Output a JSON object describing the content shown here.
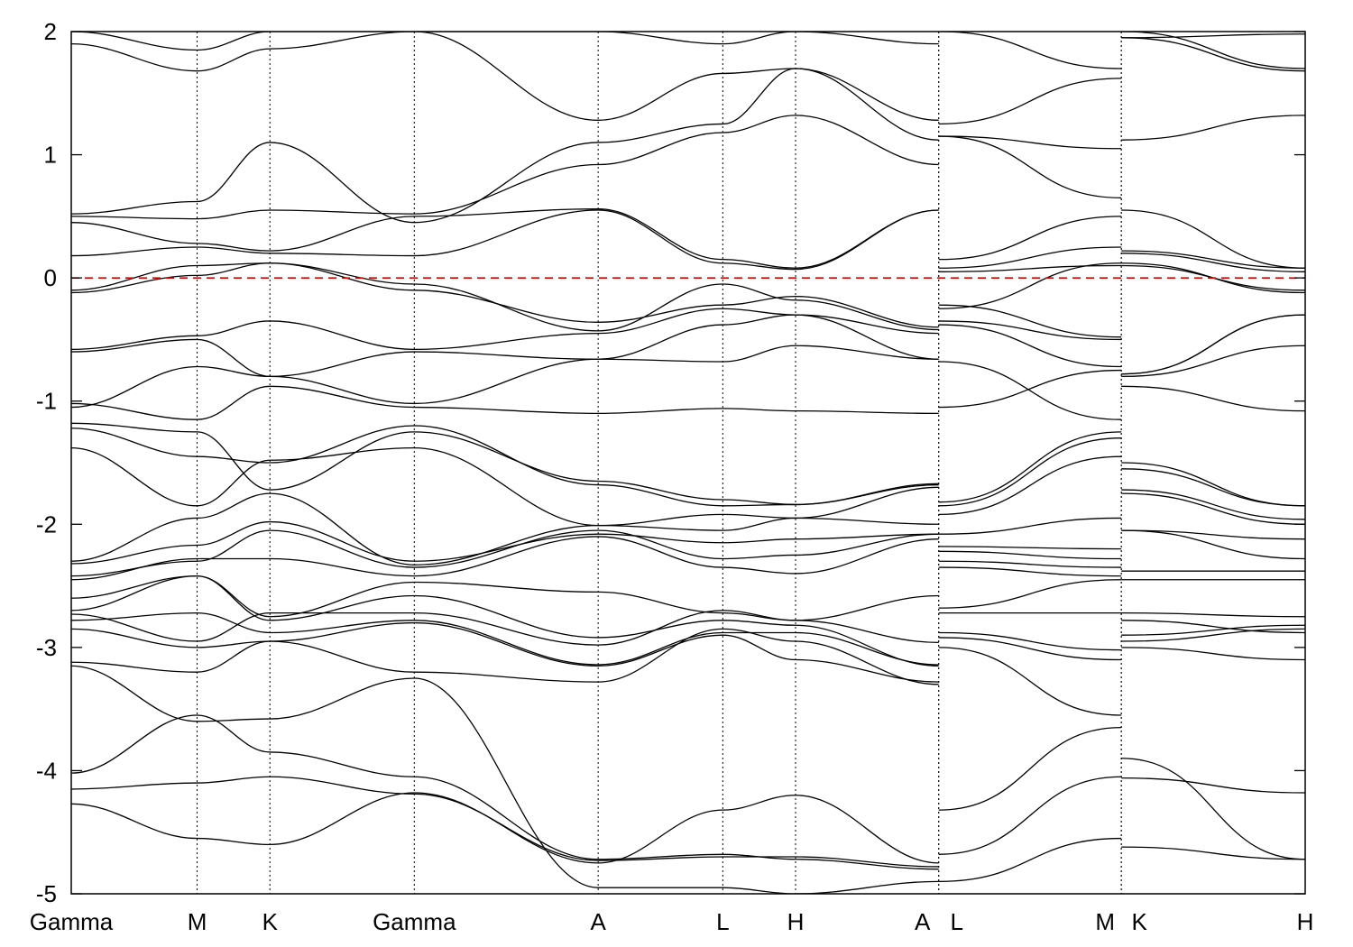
{
  "chart_data": {
    "type": "line",
    "title": "",
    "xlabel": "",
    "ylabel": "",
    "ylim": [
      -5,
      2
    ],
    "yticks": [
      -5,
      -4,
      -3,
      -2,
      -1,
      0,
      1,
      2
    ],
    "ytick_labels": [
      "-5",
      "-4",
      "-3",
      "-2",
      "-1",
      "0",
      "1",
      "2"
    ],
    "xlim": [
      0,
      1
    ],
    "kpoints": [
      {
        "label": "Gamma",
        "x": 0.0
      },
      {
        "label": "M",
        "x": 0.102
      },
      {
        "label": "K",
        "x": 0.161
      },
      {
        "label": "Gamma",
        "x": 0.278
      },
      {
        "label": "A",
        "x": 0.427
      },
      {
        "label": "L",
        "x": 0.528
      },
      {
        "label": "H",
        "x": 0.587
      },
      {
        "label": "A",
        "x": 0.703
      },
      {
        "label": "L",
        "x": 0.703
      },
      {
        "label": "M",
        "x": 0.851
      },
      {
        "label": "K",
        "x": 0.851
      },
      {
        "label": "H",
        "x": 1.0
      }
    ],
    "segment_breaks": [
      0.703,
      0.851
    ],
    "fermi_level": 0,
    "fermi_color": "#e00000",
    "band_color": "#000000",
    "grid": false,
    "legend": "none",
    "segments": [
      {
        "path": "Gamma-M-K-Gamma-A-L-H-A",
        "nodes": [
          0.0,
          0.102,
          0.161,
          0.278,
          0.427,
          0.528,
          0.587,
          0.703
        ],
        "bands": [
          [
            -4.27,
            -4.55,
            -4.6,
            -4.18,
            -4.75,
            -4.32,
            -4.2,
            -4.75
          ],
          [
            -4.15,
            -4.1,
            -4.05,
            -4.19,
            -4.73,
            -4.7,
            -4.7,
            -4.78
          ],
          [
            -4.02,
            -3.55,
            -3.85,
            -4.05,
            -4.72,
            -4.68,
            -4.72,
            -4.8
          ],
          [
            -3.15,
            -3.6,
            -3.58,
            -3.25,
            -4.95,
            -4.95,
            -5.0,
            -4.9
          ],
          [
            -3.12,
            -3.2,
            -2.95,
            -3.2,
            -3.28,
            -2.85,
            -2.95,
            -3.3
          ],
          [
            -2.85,
            -3.0,
            -2.95,
            -2.8,
            -3.15,
            -2.9,
            -3.1,
            -3.28
          ],
          [
            -2.78,
            -2.72,
            -2.88,
            -2.78,
            -3.14,
            -2.88,
            -2.88,
            -3.14
          ],
          [
            -2.73,
            -2.95,
            -2.72,
            -2.72,
            -2.98,
            -2.7,
            -2.78,
            -2.58
          ],
          [
            -2.7,
            -2.42,
            -2.78,
            -2.58,
            -2.92,
            -2.78,
            -2.82,
            -3.15
          ],
          [
            -2.6,
            -2.42,
            -2.75,
            -2.47,
            -2.55,
            -2.72,
            -2.78,
            -2.96
          ],
          [
            -2.45,
            -2.28,
            -2.28,
            -2.42,
            -2.1,
            -2.35,
            -2.4,
            -2.12
          ],
          [
            -2.42,
            -2.3,
            -2.05,
            -2.35,
            -2.05,
            -2.28,
            -2.25,
            -2.08
          ],
          [
            -2.32,
            -2.17,
            -1.98,
            -2.3,
            -2.08,
            -2.15,
            -2.12,
            -2.08
          ],
          [
            -2.3,
            -1.95,
            -1.75,
            -2.33,
            -2.01,
            -2.05,
            -1.95,
            -2.0
          ],
          [
            -1.38,
            -1.85,
            -1.48,
            -1.38,
            -2.01,
            -1.92,
            -1.95,
            -1.7
          ],
          [
            -1.22,
            -1.45,
            -1.5,
            -1.2,
            -1.68,
            -1.85,
            -1.84,
            -1.67
          ],
          [
            -1.18,
            -1.25,
            -1.72,
            -1.25,
            -1.65,
            -1.8,
            -1.84,
            -1.68
          ],
          [
            -1.02,
            -1.15,
            -0.88,
            -1.05,
            -1.1,
            -1.06,
            -1.08,
            -1.1
          ],
          [
            -1.05,
            -0.72,
            -0.8,
            -1.02,
            -0.66,
            -0.68,
            -0.55,
            -0.66
          ],
          [
            -0.6,
            -0.5,
            -0.8,
            -0.6,
            -0.66,
            -0.38,
            -0.3,
            -0.66
          ],
          [
            -0.58,
            -0.47,
            -0.35,
            -0.58,
            -0.45,
            -0.25,
            -0.3,
            -0.45
          ],
          [
            -0.12,
            0.02,
            0.12,
            -0.1,
            -0.36,
            -0.22,
            -0.15,
            -0.4
          ],
          [
            -0.1,
            0.1,
            0.12,
            -0.05,
            -0.43,
            -0.05,
            -0.18,
            -0.42
          ],
          [
            0.18,
            0.25,
            0.2,
            0.18,
            0.55,
            0.12,
            0.07,
            0.55
          ],
          [
            0.45,
            0.28,
            0.22,
            0.5,
            0.56,
            0.15,
            0.08,
            0.55
          ],
          [
            0.5,
            0.48,
            0.55,
            0.52,
            0.92,
            1.18,
            1.32,
            0.92
          ],
          [
            0.52,
            0.62,
            1.1,
            0.45,
            1.1,
            1.25,
            1.7,
            1.12
          ],
          [
            1.9,
            1.68,
            1.86,
            2.0,
            1.28,
            1.66,
            1.7,
            1.28
          ],
          [
            2.0,
            1.85,
            2.0,
            2.0,
            2.0,
            1.9,
            2.0,
            1.9
          ]
        ]
      },
      {
        "path": "L-M",
        "nodes": [
          0.703,
          0.851
        ],
        "bands": [
          [
            -4.9,
            -4.55
          ],
          [
            -4.68,
            -4.05
          ],
          [
            -4.32,
            -3.65
          ],
          [
            -3.0,
            -3.55
          ],
          [
            -2.92,
            -3.1
          ],
          [
            -2.88,
            -3.02
          ],
          [
            -2.72,
            -2.72
          ],
          [
            -2.68,
            -2.45
          ],
          [
            -2.35,
            -2.42
          ],
          [
            -2.3,
            -2.35
          ],
          [
            -2.22,
            -2.28
          ],
          [
            -2.18,
            -2.2
          ],
          [
            -2.08,
            -1.95
          ],
          [
            -1.92,
            -1.45
          ],
          [
            -1.85,
            -1.3
          ],
          [
            -1.82,
            -1.25
          ],
          [
            -1.05,
            -0.75
          ],
          [
            -0.68,
            -1.15
          ],
          [
            -0.38,
            -0.72
          ],
          [
            -0.35,
            -0.5
          ],
          [
            -0.22,
            -0.48
          ],
          [
            -0.25,
            0.12
          ],
          [
            0.05,
            0.1
          ],
          [
            0.08,
            0.25
          ],
          [
            0.15,
            0.5
          ],
          [
            1.15,
            0.65
          ],
          [
            1.15,
            1.05
          ],
          [
            1.25,
            1.62
          ],
          [
            2.0,
            1.7
          ]
        ]
      },
      {
        "path": "K-H",
        "nodes": [
          0.851,
          1.0
        ],
        "bands": [
          [
            -4.62,
            -4.72
          ],
          [
            -3.9,
            -4.72
          ],
          [
            -4.06,
            -4.18
          ],
          [
            -3.0,
            -3.1
          ],
          [
            -2.95,
            -2.85
          ],
          [
            -2.9,
            -2.82
          ],
          [
            -2.78,
            -2.88
          ],
          [
            -2.72,
            -2.75
          ],
          [
            -2.45,
            -2.45
          ],
          [
            -2.38,
            -2.38
          ],
          [
            -2.05,
            -2.28
          ],
          [
            -2.05,
            -2.12
          ],
          [
            -1.75,
            -2.0
          ],
          [
            -1.72,
            -1.96
          ],
          [
            -1.55,
            -1.85
          ],
          [
            -1.5,
            -1.85
          ],
          [
            -0.88,
            -1.08
          ],
          [
            -0.8,
            -0.55
          ],
          [
            -0.78,
            -0.3
          ],
          [
            -0.78,
            -0.3
          ],
          [
            0.12,
            -0.12
          ],
          [
            0.1,
            -0.1
          ],
          [
            0.2,
            0.05
          ],
          [
            0.22,
            0.08
          ],
          [
            0.55,
            0.08
          ],
          [
            1.12,
            1.32
          ],
          [
            1.95,
            1.68
          ],
          [
            2.0,
            1.7
          ],
          [
            1.95,
            1.98
          ]
        ]
      }
    ]
  }
}
